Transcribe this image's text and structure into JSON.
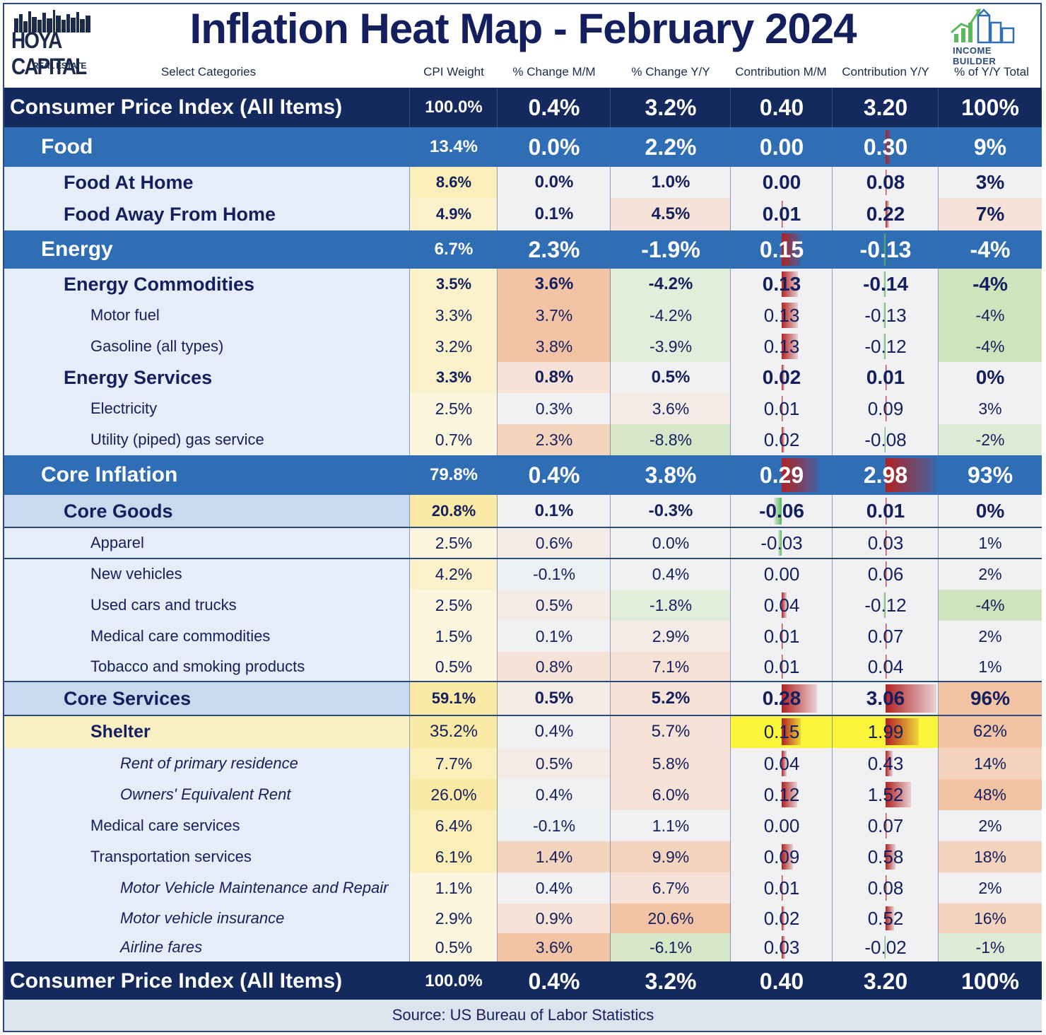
{
  "header": {
    "title": "Inflation Heat Map - February 2024",
    "left_logo": {
      "brand": "HOYA CAPITAL",
      "sub": "REAL ESTATE"
    },
    "right_logo": {
      "label": "INCOME BUILDER"
    }
  },
  "columns": [
    "Select Categories",
    "CPI Weight",
    "% Change M/M",
    "% Change Y/Y",
    "Contribution M/M",
    "Contribution Y/Y",
    "% of Y/Y Total"
  ],
  "colors": {
    "navy": "#14295e",
    "group_blue": "#2f6db5",
    "row_bg": "#e4edf8",
    "section_bg": "#c9daef",
    "weight_yellow": "#fbf0bf",
    "heat_orange": "#f3c8ae",
    "heat_light": "#f6e6df",
    "heat_green": "#d3e6c4",
    "bar_red": "#b22222",
    "highlight_yellow": "#fbf53c"
  },
  "chart_data": {
    "type": "table",
    "title": "Inflation Heat Map - February 2024",
    "columns": [
      "Select Categories",
      "CPI Weight",
      "% Change M/M",
      "% Change Y/Y",
      "Contribution M/M",
      "Contribution Y/Y",
      "% of Y/Y Total"
    ],
    "rows": [
      {
        "level": "total",
        "name": "Consumer Price Index (All Items)",
        "weight": "100.0%",
        "mm": "0.4%",
        "yy": "3.2%",
        "cmm": "0.40",
        "cyy": "3.20",
        "pct": "100%"
      },
      {
        "level": "group",
        "name": "Food",
        "weight": "13.4%",
        "mm": "0.0%",
        "yy": "2.2%",
        "cmm": "0.00",
        "cyy": "0.30",
        "pct": "9%"
      },
      {
        "level": "sub",
        "name": "Food At Home",
        "weight": "8.6%",
        "mm": "0.0%",
        "yy": "1.0%",
        "cmm": "0.00",
        "cyy": "0.08",
        "pct": "3%"
      },
      {
        "level": "sub",
        "name": "Food Away From Home",
        "weight": "4.9%",
        "mm": "0.1%",
        "yy": "4.5%",
        "cmm": "0.01",
        "cyy": "0.22",
        "pct": "7%"
      },
      {
        "level": "group",
        "name": "Energy",
        "weight": "6.7%",
        "mm": "2.3%",
        "yy": "-1.9%",
        "cmm": "0.15",
        "cyy": "-0.13",
        "pct": "-4%"
      },
      {
        "level": "sub",
        "name": "Energy Commodities",
        "weight": "3.5%",
        "mm": "3.6%",
        "yy": "-4.2%",
        "cmm": "0.13",
        "cyy": "-0.14",
        "pct": "-4%"
      },
      {
        "level": "item",
        "name": "Motor fuel",
        "weight": "3.3%",
        "mm": "3.7%",
        "yy": "-4.2%",
        "cmm": "0.13",
        "cyy": "-0.13",
        "pct": "-4%"
      },
      {
        "level": "item",
        "name": "Gasoline (all types)",
        "weight": "3.2%",
        "mm": "3.8%",
        "yy": "-3.9%",
        "cmm": "0.13",
        "cyy": "-0.12",
        "pct": "-4%"
      },
      {
        "level": "sub",
        "name": "Energy Services",
        "weight": "3.3%",
        "mm": "0.8%",
        "yy": "0.5%",
        "cmm": "0.02",
        "cyy": "0.01",
        "pct": "0%"
      },
      {
        "level": "item",
        "name": "Electricity",
        "weight": "2.5%",
        "mm": "0.3%",
        "yy": "3.6%",
        "cmm": "0.01",
        "cyy": "0.09",
        "pct": "3%"
      },
      {
        "level": "item",
        "name": "Utility (piped) gas service",
        "weight": "0.7%",
        "mm": "2.3%",
        "yy": "-8.8%",
        "cmm": "0.02",
        "cyy": "-0.08",
        "pct": "-2%"
      },
      {
        "level": "group",
        "name": "Core Inflation",
        "weight": "79.8%",
        "mm": "0.4%",
        "yy": "3.8%",
        "cmm": "0.29",
        "cyy": "2.98",
        "pct": "93%"
      },
      {
        "level": "section",
        "name": "Core Goods",
        "weight": "20.8%",
        "mm": "0.1%",
        "yy": "-0.3%",
        "cmm": "-0.06",
        "cyy": "0.01",
        "pct": "0%"
      },
      {
        "level": "item",
        "name": "Apparel",
        "weight": "2.5%",
        "mm": "0.6%",
        "yy": "0.0%",
        "cmm": "-0.03",
        "cyy": "0.03",
        "pct": "1%"
      },
      {
        "level": "item",
        "name": "New vehicles",
        "weight": "4.2%",
        "mm": "-0.1%",
        "yy": "0.4%",
        "cmm": "0.00",
        "cyy": "0.06",
        "pct": "2%"
      },
      {
        "level": "item",
        "name": "Used cars and trucks",
        "weight": "2.5%",
        "mm": "0.5%",
        "yy": "-1.8%",
        "cmm": "0.04",
        "cyy": "-0.12",
        "pct": "-4%"
      },
      {
        "level": "item",
        "name": "Medical care commodities",
        "weight": "1.5%",
        "mm": "0.1%",
        "yy": "2.9%",
        "cmm": "0.01",
        "cyy": "0.07",
        "pct": "2%"
      },
      {
        "level": "item",
        "name": "Tobacco and smoking products",
        "weight": "0.5%",
        "mm": "0.8%",
        "yy": "7.1%",
        "cmm": "0.01",
        "cyy": "0.04",
        "pct": "1%"
      },
      {
        "level": "section",
        "name": "Core Services",
        "weight": "59.1%",
        "mm": "0.5%",
        "yy": "5.2%",
        "cmm": "0.28",
        "cyy": "3.06",
        "pct": "96%"
      },
      {
        "level": "shelter",
        "name": "Shelter",
        "weight": "35.2%",
        "mm": "0.4%",
        "yy": "5.7%",
        "cmm": "0.15",
        "cyy": "1.99",
        "pct": "62%"
      },
      {
        "level": "italic",
        "name": "Rent of primary residence",
        "weight": "7.7%",
        "mm": "0.5%",
        "yy": "5.8%",
        "cmm": "0.04",
        "cyy": "0.43",
        "pct": "14%"
      },
      {
        "level": "italic",
        "name": "Owners' Equivalent Rent",
        "weight": "26.0%",
        "mm": "0.4%",
        "yy": "6.0%",
        "cmm": "0.12",
        "cyy": "1.52",
        "pct": "48%"
      },
      {
        "level": "item",
        "name": "Medical care services",
        "weight": "6.4%",
        "mm": "-0.1%",
        "yy": "1.1%",
        "cmm": "0.00",
        "cyy": "0.07",
        "pct": "2%"
      },
      {
        "level": "item",
        "name": "Transportation services",
        "weight": "6.1%",
        "mm": "1.4%",
        "yy": "9.9%",
        "cmm": "0.09",
        "cyy": "0.58",
        "pct": "18%"
      },
      {
        "level": "italic",
        "name": "Motor Vehicle Maintenance and Repair",
        "weight": "1.1%",
        "mm": "0.4%",
        "yy": "6.7%",
        "cmm": "0.01",
        "cyy": "0.08",
        "pct": "2%"
      },
      {
        "level": "italic",
        "name": "Motor vehicle insurance",
        "weight": "2.9%",
        "mm": "0.9%",
        "yy": "20.6%",
        "cmm": "0.02",
        "cyy": "0.52",
        "pct": "16%"
      },
      {
        "level": "italic",
        "name": "Airline fares",
        "weight": "0.5%",
        "mm": "3.6%",
        "yy": "-6.1%",
        "cmm": "0.03",
        "cyy": "-0.02",
        "pct": "-1%"
      },
      {
        "level": "total",
        "name": "Consumer Price Index (All Items)",
        "weight": "100.0%",
        "mm": "0.4%",
        "yy": "3.2%",
        "cmm": "0.40",
        "cyy": "3.20",
        "pct": "100%"
      }
    ]
  },
  "footer": {
    "source": "Source: US Bureau of Labor Statistics"
  }
}
